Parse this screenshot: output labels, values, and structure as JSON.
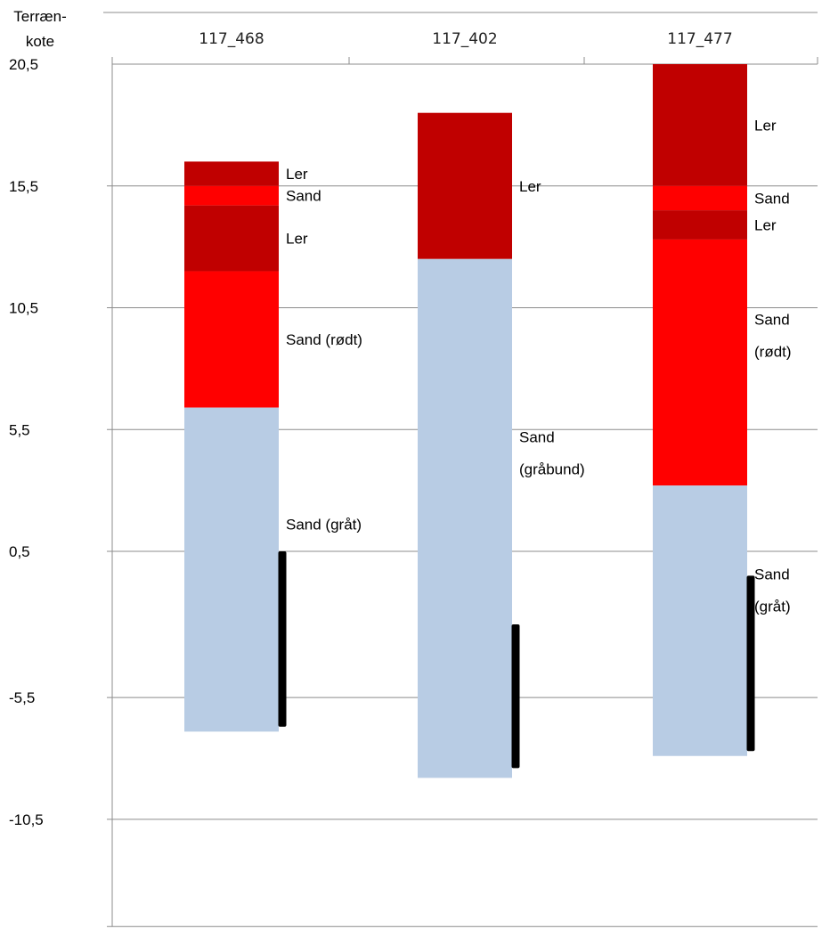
{
  "chart_data": {
    "type": "bar",
    "ylabel": "Terræn-kote",
    "ylabel_lines": [
      "Terræn-",
      "kote"
    ],
    "yticks": [
      "20,5",
      "15,5",
      "10,5",
      "5,5",
      "0,5",
      "-5,5",
      "-10,5"
    ],
    "ytick_values": [
      20.5,
      15.5,
      10.5,
      5.5,
      0.5,
      -5.5,
      -10.5
    ],
    "ylim": [
      -14.9,
      20.5
    ],
    "grid": true,
    "colors": {
      "Ler": "#c00000",
      "Sand": "#ff0000",
      "Sand (rødt)": "#ff0000",
      "Sand (gråt)": "#b8cce4",
      "Sand (gråbund)": "#b8cce4",
      "screen": "#000000",
      "axis": "#8c8c8c"
    },
    "categories": [
      "117_468",
      "117_402",
      "117_477"
    ],
    "boreholes": [
      {
        "name": "117_468",
        "layers": [
          {
            "soil": "Ler",
            "top": 16.5,
            "bottom": 15.5,
            "label_lines": [
              "Ler"
            ]
          },
          {
            "soil": "Sand",
            "top": 15.5,
            "bottom": 14.7,
            "label_lines": [
              "Sand"
            ]
          },
          {
            "soil": "Ler",
            "top": 14.7,
            "bottom": 12.0,
            "label_lines": [
              "Ler"
            ]
          },
          {
            "soil": "Sand (rødt)",
            "top": 12.0,
            "bottom": 6.4,
            "label_lines": [
              "Sand (rødt)"
            ]
          },
          {
            "soil": "Sand (gråt)",
            "top": 6.4,
            "bottom": -6.9,
            "label_lines": [
              "Sand (gråt)"
            ]
          }
        ],
        "screen": {
          "top": 0.5,
          "bottom": -6.7
        }
      },
      {
        "name": "117_402",
        "layers": [
          {
            "soil": "Ler",
            "top": 18.5,
            "bottom": 12.5,
            "label_lines": [
              "Ler"
            ]
          },
          {
            "soil": "Sand (gråbund)",
            "top": 12.5,
            "bottom": -8.8,
            "label_lines": [
              "Sand",
              "(gråbund)"
            ]
          }
        ],
        "screen": {
          "top": -2.5,
          "bottom": -8.4
        }
      },
      {
        "name": "117_477",
        "layers": [
          {
            "soil": "Ler",
            "top": 20.5,
            "bottom": 15.5,
            "label_lines": [
              "Ler"
            ]
          },
          {
            "soil": "Sand",
            "top": 15.5,
            "bottom": 14.5,
            "label_lines": [
              "Sand"
            ]
          },
          {
            "soil": "Ler",
            "top": 14.5,
            "bottom": 13.3,
            "label_lines": [
              "Ler"
            ]
          },
          {
            "soil": "Sand (rødt)",
            "top": 13.3,
            "bottom": 3.2,
            "label_lines": [
              "Sand",
              "(rødt)"
            ]
          },
          {
            "soil": "Sand (gråt)",
            "top": 3.2,
            "bottom": -7.9,
            "label_lines": [
              "Sand",
              "(gråt)"
            ]
          }
        ],
        "screen": {
          "top": -0.5,
          "bottom": -7.7
        }
      }
    ]
  }
}
